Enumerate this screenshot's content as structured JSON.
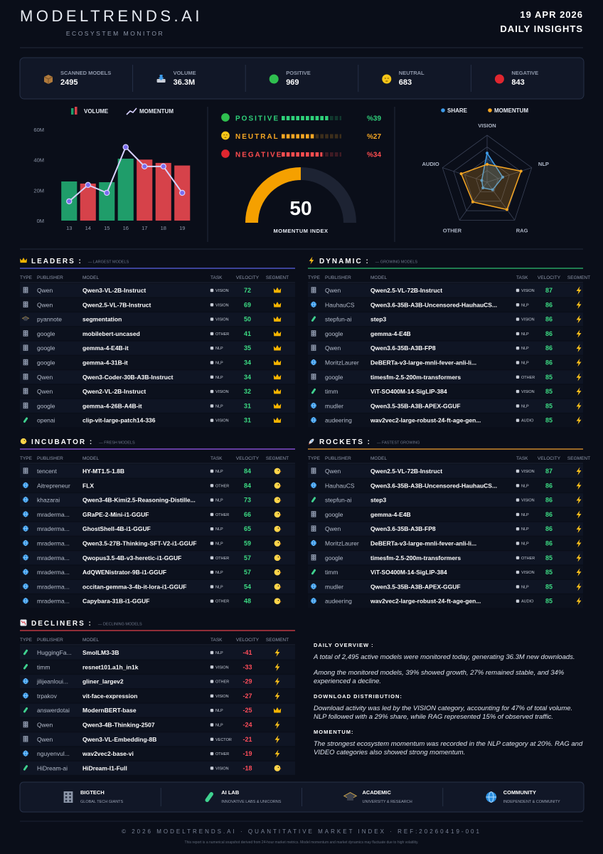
{
  "header": {
    "brand": "MODELTRENDS.AI",
    "subtitle": "ECOSYSTEM MONITOR",
    "date": "19 APR 2026",
    "title": "DAILY INSIGHTS"
  },
  "stats": [
    {
      "label": "SCANNED MODELS",
      "value": 2495
    },
    {
      "label": "VOLUME",
      "value": "36.3M"
    },
    {
      "label": "POSITIVE",
      "value": 969
    },
    {
      "label": "NEUTRAL",
      "value": 683
    },
    {
      "label": "NEGATIVE",
      "value": 843
    }
  ],
  "chart_data": [
    {
      "type": "combo",
      "categories": [
        "13",
        "14",
        "15",
        "16",
        "17",
        "18",
        "19"
      ],
      "ylim": [
        0,
        60
      ],
      "yticks": [
        {
          "value": 0,
          "label": "0M"
        },
        {
          "value": 20,
          "label": "20M"
        },
        {
          "value": 40,
          "label": "40M"
        },
        {
          "value": 60,
          "label": "60M"
        }
      ],
      "grid": false,
      "series": [
        {
          "name": "VOLUME",
          "kind": "bar",
          "colors": [
            "#1f9d6a",
            "#d6424a",
            "#1f9d6a",
            "#1f9d6a",
            "#d6424a",
            "#d6424a",
            "#d6424a"
          ],
          "values": [
            25.8,
            24.4,
            25.3,
            40.8,
            40.2,
            38.0,
            36.3
          ]
        },
        {
          "name": "MOMENTUM",
          "kind": "line",
          "color": "#d8d2ff",
          "values": [
            12.7,
            23.5,
            18.3,
            48.4,
            35.7,
            35.7,
            18.3
          ]
        }
      ]
    },
    {
      "type": "hbar",
      "categories": [
        "POSITIVE",
        "NEUTRAL",
        "NEGATIVE"
      ],
      "values": [
        39,
        27,
        34
      ],
      "value_labels": [
        "%39",
        "%27",
        "%34"
      ],
      "colors": [
        "#2fd17a",
        "#f5a623",
        "#ff4d4f"
      ],
      "xlim": [
        0,
        50
      ]
    },
    {
      "type": "gauge",
      "value": 50,
      "label": "MOMENTUM INDEX",
      "range": [
        0,
        100
      ],
      "color": "#f5a000"
    },
    {
      "type": "radar",
      "categories": [
        "VISION",
        "NLP",
        "RAG",
        "OTHER",
        "AUDIO"
      ],
      "rlim": [
        0,
        100
      ],
      "rticks": [
        25,
        50,
        75,
        100
      ],
      "series": [
        {
          "name": "SHARE",
          "color": "#3d9be9",
          "values": [
            62,
            35,
            20,
            15,
            12
          ]
        },
        {
          "name": "MOMENTUM",
          "color": "#f5a623",
          "values": [
            38,
            76,
            72,
            52,
            58
          ]
        }
      ]
    }
  ],
  "tables": [
    {
      "title": "LEADERS :",
      "subtitle": "— LARGEST MODELS",
      "color": "#5b63e6",
      "columns": [
        "TYPE",
        "PUBLISHER",
        "MODEL",
        "TASK",
        "VELOCITY",
        "SEGMENT"
      ],
      "rows": [
        [
          "Qwen",
          "Qwen3-VL-2B-Instruct",
          "VISION",
          72
        ],
        [
          "Qwen",
          "Qwen2.5-VL-7B-Instruct",
          "VISION",
          69
        ],
        [
          "pyannote",
          "segmentation",
          "VISION",
          50
        ],
        [
          "google",
          "mobilebert-uncased",
          "OTHER",
          41
        ],
        [
          "google",
          "gemma-4-E4B-it",
          "NLP",
          35
        ],
        [
          "google",
          "gemma-4-31B-it",
          "NLP",
          34
        ],
        [
          "Qwen",
          "Qwen3-Coder-30B-A3B-Instruct",
          "NLP",
          34
        ],
        [
          "Qwen",
          "Qwen2-VL-2B-Instruct",
          "VISION",
          32
        ],
        [
          "google",
          "gemma-4-26B-A4B-it",
          "NLP",
          31
        ],
        [
          "openai",
          "clip-vit-large-patch14-336",
          "VISION",
          31
        ]
      ]
    },
    {
      "title": "DYNAMIC :",
      "subtitle": "— GROWING MODELS",
      "color": "#2fbf71",
      "columns": [
        "TYPE",
        "PUBLISHER",
        "MODEL",
        "TASK",
        "VELOCITY",
        "SEGMENT"
      ],
      "rows": [
        [
          "Qwen",
          "Qwen2.5-VL-72B-Instruct",
          "VISION",
          87
        ],
        [
          "HauhauCS",
          "Qwen3.6-35B-A3B-Uncensored-HauhauCS...",
          "NLP",
          86
        ],
        [
          "stepfun-ai",
          "step3",
          "VISION",
          86
        ],
        [
          "google",
          "gemma-4-E4B",
          "NLP",
          86
        ],
        [
          "Qwen",
          "Qwen3.6-35B-A3B-FP8",
          "NLP",
          86
        ],
        [
          "MoritzLaurer",
          "DeBERTa-v3-large-mnli-fever-anli-li...",
          "NLP",
          86
        ],
        [
          "google",
          "timesfm-2.5-200m-transformers",
          "OTHER",
          85
        ],
        [
          "timm",
          "ViT-SO400M-14-SigLIP-384",
          "VISION",
          85
        ],
        [
          "mudler",
          "Qwen3.5-35B-A3B-APEX-GGUF",
          "NLP",
          85
        ],
        [
          "audeering",
          "wav2vec2-large-robust-24-ft-age-gen...",
          "AUDIO",
          85
        ]
      ]
    },
    {
      "title": "INCUBATOR :",
      "subtitle": "— FRESH MODELS",
      "color": "#9b59f0",
      "columns": [
        "TYPE",
        "PUBLISHER",
        "MODEL",
        "TASK",
        "VELOCITY",
        "SEGMENT"
      ],
      "rows": [
        [
          "tencent",
          "HY-MT1.5-1.8B",
          "NLP",
          84
        ],
        [
          "Aitrepreneur",
          "FLX",
          "OTHER",
          84
        ],
        [
          "khazarai",
          "Qwen3-4B-Kimi2.5-Reasoning-Distille...",
          "NLP",
          73
        ],
        [
          "mraderma...",
          "GRaPE-2-Mini-i1-GGUF",
          "OTHER",
          66
        ],
        [
          "mraderma...",
          "GhostShell-4B-i1-GGUF",
          "NLP",
          65
        ],
        [
          "mraderma...",
          "Qwen3.5-27B-Thinking-SFT-V2-i1-GGUF",
          "NLP",
          59
        ],
        [
          "mraderma...",
          "Qwopus3.5-4B-v3-heretic-i1-GGUF",
          "OTHER",
          57
        ],
        [
          "mraderma...",
          "AdQWENistrator-9B-i1-GGUF",
          "NLP",
          57
        ],
        [
          "mraderma...",
          "occitan-gemma-3-4b-it-lora-i1-GGUF",
          "NLP",
          54
        ],
        [
          "mraderma...",
          "Capybara-31B-i1-GGUF",
          "OTHER",
          48
        ]
      ]
    },
    {
      "title": "ROCKETS :",
      "subtitle": "— FASTEST GROWING",
      "color": "#f0a030",
      "columns": [
        "TYPE",
        "PUBLISHER",
        "MODEL",
        "TASK",
        "VELOCITY",
        "SEGMENT"
      ],
      "rows": [
        [
          "Qwen",
          "Qwen2.5-VL-72B-Instruct",
          "VISION",
          87
        ],
        [
          "HauhauCS",
          "Qwen3.6-35B-A3B-Uncensored-HauhauCS...",
          "NLP",
          86
        ],
        [
          "stepfun-ai",
          "step3",
          "VISION",
          86
        ],
        [
          "google",
          "gemma-4-E4B",
          "NLP",
          86
        ],
        [
          "Qwen",
          "Qwen3.6-35B-A3B-FP8",
          "NLP",
          86
        ],
        [
          "MoritzLaurer",
          "DeBERTa-v3-large-mnli-fever-anli-li...",
          "NLP",
          86
        ],
        [
          "google",
          "timesfm-2.5-200m-transformers",
          "OTHER",
          85
        ],
        [
          "timm",
          "ViT-SO400M-14-SigLIP-384",
          "VISION",
          85
        ],
        [
          "mudler",
          "Qwen3.5-35B-A3B-APEX-GGUF",
          "NLP",
          85
        ],
        [
          "audeering",
          "wav2vec2-large-robust-24-ft-age-gen...",
          "AUDIO",
          85
        ]
      ]
    },
    {
      "title": "DECLINERS :",
      "subtitle": "— DECLINING MODELS",
      "color": "#e0404a",
      "columns": [
        "TYPE",
        "PUBLISHER",
        "MODEL",
        "TASK",
        "VELOCITY",
        "SEGMENT"
      ],
      "rows": [
        [
          "HuggingFa...",
          "SmolLM3-3B",
          "NLP",
          -41
        ],
        [
          "timm",
          "resnet101.a1h_in1k",
          "VISION",
          -33
        ],
        [
          "jilijeanloui...",
          "gliner_largev2",
          "OTHER",
          -29
        ],
        [
          "trpakov",
          "vit-face-expression",
          "VISION",
          -27
        ],
        [
          "answerdotai",
          "ModernBERT-base",
          "NLP",
          -25
        ],
        [
          "Qwen",
          "Qwen3-4B-Thinking-2507",
          "NLP",
          -24
        ],
        [
          "Qwen",
          "Qwen3-VL-Embedding-8B",
          "VECTOR",
          -21
        ],
        [
          "nguyenvul...",
          "wav2vec2-base-vi",
          "OTHER",
          -19
        ],
        [
          "HiDream-ai",
          "HiDream-I1-Full",
          "VISION",
          -18
        ]
      ]
    }
  ],
  "overview": [
    {
      "heading": "DAILY OVERVIEW :",
      "paragraphs": [
        "A total of 2,495 active models were monitored today, generating 36.3M new downloads.",
        "Among the monitored models, 39% showed growth, 27% remained stable, and 34% experienced a decline."
      ]
    },
    {
      "heading": "DOWNLOAD DISTRIBUTION:",
      "paragraphs": [
        "Download activity was led by the VISION category, accounting for 47% of total volume. NLP followed with a 29% share, while RAG represented 15% of observed traffic."
      ]
    },
    {
      "heading": "MOMENTUM:",
      "paragraphs": [
        "The strongest ecosystem momentum was recorded in the NLP category at 20%. RAG and VIDEO categories also showed strong momentum."
      ]
    }
  ],
  "legend": [
    {
      "title": "BIGTECH",
      "subtitle": "GLOBAL TECH GIANTS"
    },
    {
      "title": "AI LAB",
      "subtitle": "INNOVATIVE LABS & UNICORNS"
    },
    {
      "title": "ACADEMIC",
      "subtitle": "UNIVERSITY & RESEARCH"
    },
    {
      "title": "COMMUNITY",
      "subtitle": "INDEPENDENT & COMMUNITY"
    }
  ],
  "footer": {
    "line": "© 2026 MODELTRENDS.AI · QUANTITATIVE MARKET INDEX · REF:20260419-001",
    "note": "This report is a numerical snapshot derived from 24-hour market metrics. Model momentum and market dynamics may fluctuate due to high volatility."
  }
}
